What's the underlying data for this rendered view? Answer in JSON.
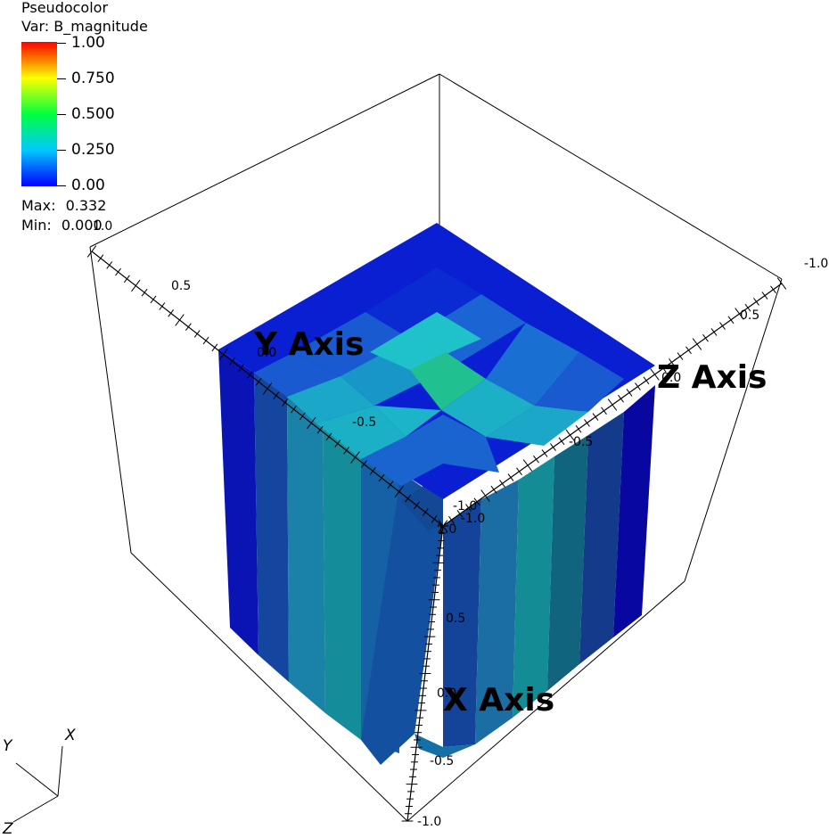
{
  "legend": {
    "title": "Pseudocolor",
    "var": "Var: B_magnitude",
    "ticks": [
      "1.00",
      "0.750",
      "0.500",
      "0.250",
      "0.00"
    ],
    "max_label": "Max:",
    "max_value": "0.332",
    "min_label": "Min:",
    "min_value": "0.000",
    "colormap": [
      "#0000ff",
      "#00c8ff",
      "#00ff40",
      "#ffff00",
      "#ff0000"
    ]
  },
  "axes": {
    "x_title": "X Axis",
    "y_title": "Y Axis",
    "z_title": "Z Axis",
    "y_ticks": [
      "1.0",
      "0.5",
      "0.0",
      "-0.5",
      "-1.0"
    ],
    "z_ticks": [
      "-1.0",
      "0.5",
      "0.0",
      "-0.5",
      "-1.0"
    ],
    "x_ticks": [
      "1.0",
      "0.5",
      "0.0",
      "-0.5",
      "-1.0"
    ]
  },
  "triad": {
    "x": "X",
    "y": "Y",
    "z": "Z"
  },
  "colors": {
    "dark_blue": "#0000b4",
    "blue": "#1f50c8",
    "teal": "#19a0b4",
    "green": "#28c88c"
  }
}
